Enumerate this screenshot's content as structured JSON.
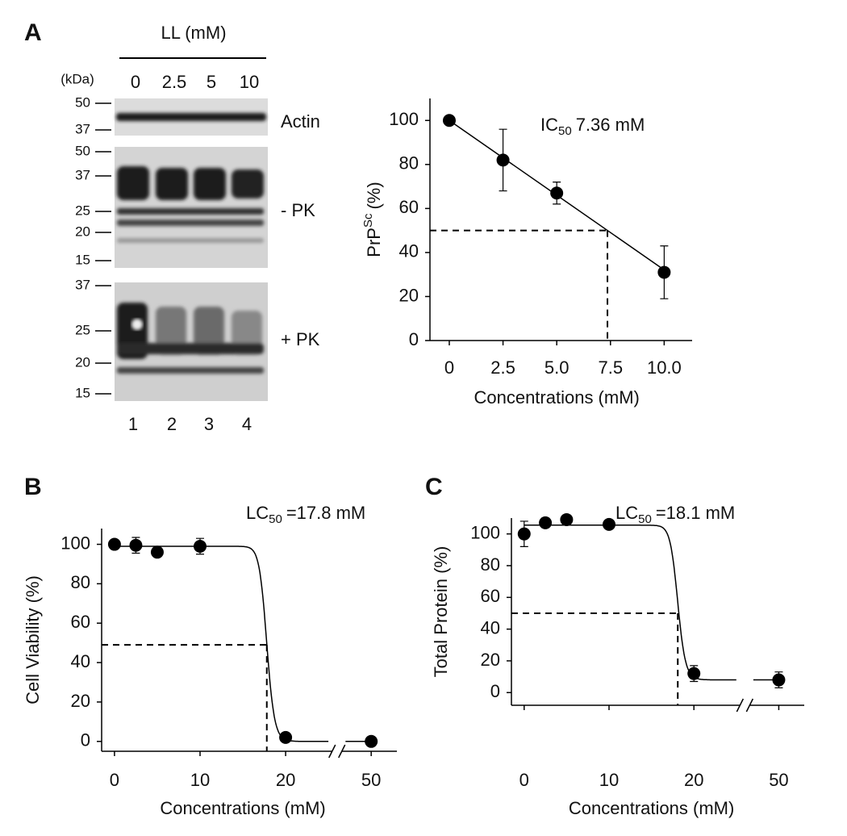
{
  "blot": {
    "panel": "A",
    "title": "LL (mM)",
    "unit": "(kDa)",
    "lanes": [
      "0",
      "2.5",
      "5",
      "10"
    ],
    "lane_numbers": [
      "1",
      "2",
      "3",
      "4"
    ],
    "sections": [
      {
        "label": "Actin",
        "markers": [
          "50",
          "37"
        ]
      },
      {
        "label": "- PK",
        "markers": [
          "50",
          "37",
          "25",
          "20",
          "15"
        ]
      },
      {
        "label": "+ PK",
        "markers": [
          "37",
          "25",
          "20",
          "15"
        ]
      }
    ]
  },
  "chart_data": [
    {
      "type": "scatter",
      "x": [
        0,
        2.5,
        5,
        10
      ],
      "values": [
        100,
        82,
        67,
        31
      ],
      "errors": [
        2,
        14,
        5,
        12
      ],
      "color": "#000000",
      "xlabel": "Concentrations (mM)",
      "ylabel": [
        "PrP",
        "Sc",
        "(%)"
      ],
      "annotation": [
        "IC",
        "50",
        "7.36 mM"
      ],
      "xlim": [
        -0.9,
        11.3
      ],
      "ylim": [
        0,
        110
      ],
      "xticks": [
        0,
        2.5,
        {
          "value": 5,
          "label": "5.0"
        },
        7.5,
        {
          "value": 10,
          "label": "10.0"
        }
      ],
      "yticks": [
        0,
        20,
        40,
        60,
        80,
        100
      ],
      "fit": {
        "kind": "linear",
        "x": [
          0,
          10
        ],
        "values": [
          100,
          32.1
        ],
        "x50": 7.36
      },
      "cutoff": 50
    },
    {
      "type": "scatter",
      "panel": "B",
      "x": [
        0,
        2.5,
        5,
        10,
        20,
        50
      ],
      "values": [
        100,
        99.5,
        96,
        99,
        2,
        0
      ],
      "errors": [
        2,
        4,
        0,
        4,
        0,
        0
      ],
      "color": "#000000",
      "xlabel": "Concentrations (mM)",
      "ylabel": "Cell Viability (%)",
      "annotation": [
        "LC",
        "50",
        "=17.8 mM"
      ],
      "xlim": [
        -1.5,
        53
      ],
      "xbreak": [
        26,
        46
      ],
      "ylim": [
        -5,
        108
      ],
      "xticks": [
        0,
        10,
        20,
        50
      ],
      "yticks": [
        0,
        20,
        40,
        60,
        80,
        100
      ],
      "fit": {
        "kind": "sigmoid",
        "top": 99,
        "bottom": 0,
        "x50": 17.8,
        "hill": 40
      },
      "cutoff": 49
    },
    {
      "type": "scatter",
      "panel": "C",
      "x": [
        0,
        2.5,
        5,
        10,
        20,
        50
      ],
      "values": [
        100,
        107,
        109,
        106,
        12,
        8
      ],
      "errors": [
        8,
        3,
        3,
        2,
        5,
        5
      ],
      "color": "#000000",
      "xlabel": "Concentrations (mM)",
      "ylabel": "Total Protein (%)",
      "annotation": [
        "LC",
        "50",
        "=18.1 mM"
      ],
      "xlim": [
        -1.5,
        53
      ],
      "xbreak": [
        26,
        46
      ],
      "ylim": [
        -8,
        110
      ],
      "xticks": [
        0,
        10,
        20,
        50
      ],
      "yticks": [
        0,
        20,
        40,
        60,
        80,
        100
      ],
      "fit": {
        "kind": "sigmoid",
        "top": 105.5,
        "bottom": 8,
        "x50": 18.1,
        "hill": 40
      },
      "cutoff": 50
    }
  ]
}
